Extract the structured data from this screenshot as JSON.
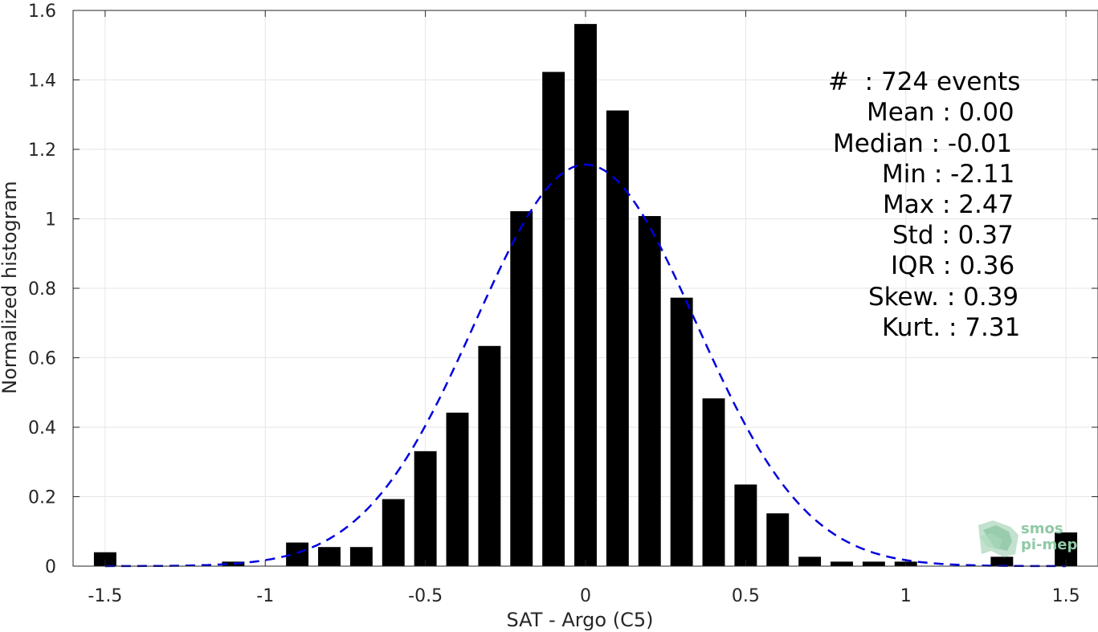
{
  "chart_data": {
    "type": "bar",
    "xlabel": "SAT - Argo (C5)",
    "ylabel": "Normalized histogram",
    "xlim": [
      -1.6,
      1.6
    ],
    "ylim": [
      0,
      1.6
    ],
    "xticks": [
      -1.5,
      -1,
      -0.5,
      0,
      0.5,
      1,
      1.5
    ],
    "xtick_labels": [
      "-1.5",
      "-1",
      "-0.5",
      "0",
      "0.5",
      "1",
      "1.5"
    ],
    "yticks": [
      0,
      0.2,
      0.4,
      0.6,
      0.8,
      1,
      1.2,
      1.4,
      1.6
    ],
    "ytick_labels": [
      "0",
      "0.2",
      "0.4",
      "0.6",
      "0.8",
      "1",
      "1.2",
      "1.4",
      "1.6"
    ],
    "grid": true,
    "bar_width": 0.07,
    "bar_color": "#000000",
    "fit_color": "#0000dd",
    "x": [
      -1.5,
      -1.4,
      -1.3,
      -1.2,
      -1.1,
      -1.0,
      -0.9,
      -0.8,
      -0.7,
      -0.6,
      -0.5,
      -0.4,
      -0.3,
      -0.2,
      -0.1,
      0.0,
      0.1,
      0.2,
      0.3,
      0.4,
      0.5,
      0.6,
      0.7,
      0.8,
      0.9,
      1.0,
      1.1,
      1.2,
      1.3,
      1.4,
      1.5
    ],
    "values": [
      0.04,
      0,
      0,
      0,
      0.013,
      0,
      0.068,
      0.055,
      0.055,
      0.193,
      0.331,
      0.442,
      0.634,
      1.022,
      1.423,
      1.561,
      1.312,
      1.008,
      0.773,
      0.483,
      0.235,
      0.152,
      0.027,
      0.013,
      0.013,
      0.013,
      0,
      0,
      0.027,
      0,
      0.097
    ],
    "fit": {
      "type": "normal",
      "mean": 0.0,
      "std": 0.345,
      "style": "dashed"
    }
  },
  "stats": [
    {
      "text": "#  : 724 events"
    },
    {
      "text": "Mean : 0.00"
    },
    {
      "text": "Median : -0.01"
    },
    {
      "text": "Min : -2.11"
    },
    {
      "text": "Max : 2.47"
    },
    {
      "text": "Std : 0.37"
    },
    {
      "text": "IQR : 0.36"
    },
    {
      "text": "Skew. : 0.39"
    },
    {
      "text": "Kurt. : 7.31"
    }
  ],
  "watermark": {
    "line1": "smos",
    "line2": "pi-mep",
    "color": "#8fc9a6"
  }
}
